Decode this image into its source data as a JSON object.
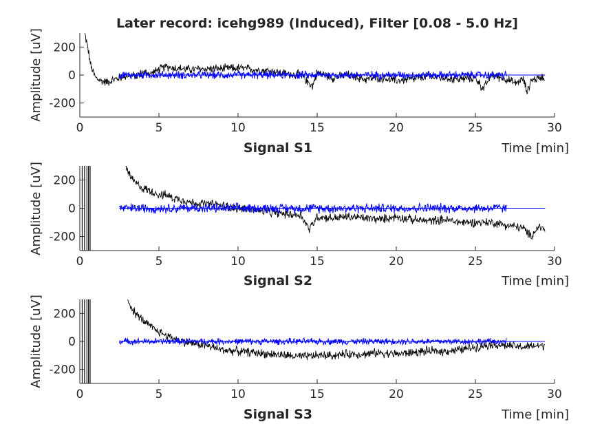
{
  "title": "Later record: icehg989 (Induced), Filter [0.08 - 5.0 Hz]",
  "colors": {
    "raw": "#000000",
    "filtered": "#0000ff",
    "axis": "#262626"
  },
  "chart_data": [
    {
      "type": "line",
      "title": "Signal S1",
      "xlabel": "Time [min]",
      "ylabel": "Amplitude [uV]",
      "xlim": [
        0,
        30
      ],
      "ylim": [
        -300,
        300
      ],
      "xticks": [
        0,
        5,
        10,
        15,
        20,
        25,
        30
      ],
      "yticks": [
        -200,
        0,
        200
      ],
      "series": [
        {
          "color": "#000000",
          "x": [
            0.3,
            0.5,
            0.7,
            1.0,
            1.3,
            1.7,
            2.0,
            2.5,
            3.0,
            3.5,
            4.0,
            4.5,
            5.0,
            5.5,
            6.0,
            7.0,
            8.0,
            9.0,
            10.0,
            11.0,
            12.0,
            13.0,
            14.0,
            14.7,
            15.0,
            15.5,
            16.0,
            17.0,
            18.0,
            19.0,
            20.0,
            21.0,
            22.0,
            23.0,
            24.0,
            25.0,
            25.5,
            26.0,
            27.0,
            27.5,
            28.0,
            28.3,
            28.5,
            29.0,
            29.4
          ],
          "y": [
            300,
            200,
            60,
            -20,
            -40,
            -50,
            -40,
            -20,
            0,
            -10,
            20,
            10,
            40,
            60,
            50,
            40,
            45,
            45,
            50,
            40,
            30,
            10,
            0,
            -80,
            20,
            0,
            -20,
            0,
            -30,
            -20,
            -40,
            -30,
            -10,
            -20,
            -30,
            -20,
            -100,
            0,
            -30,
            -60,
            -30,
            -120,
            -40,
            -20,
            -10
          ]
        },
        {
          "color": "#0000ff",
          "x": [
            2.5,
            5,
            10,
            15,
            20,
            25,
            27
          ],
          "y": [
            0,
            0,
            0,
            0,
            0,
            0,
            0
          ],
          "noise_band": 25
        }
      ]
    },
    {
      "type": "line",
      "title": "Signal S2",
      "xlabel": "Time [min]",
      "ylabel": "Amplitude [uV]",
      "xlim": [
        0,
        30
      ],
      "ylim": [
        -300,
        300
      ],
      "xticks": [
        0,
        5,
        10,
        15,
        20,
        25,
        30
      ],
      "yticks": [
        -200,
        0,
        200
      ],
      "series": [
        {
          "color": "#000000",
          "x": [
            2.9,
            3.2,
            3.5,
            4.0,
            4.5,
            5.0,
            5.5,
            6.0,
            6.5,
            7.0,
            8.0,
            9.0,
            10.0,
            11.0,
            12.0,
            13.0,
            14.0,
            14.5,
            15.0,
            16.0,
            17.0,
            18.0,
            19.0,
            20.0,
            21.0,
            22.0,
            23.0,
            24.0,
            25.0,
            26.0,
            27.0,
            28.0,
            28.5,
            29.0,
            29.4
          ],
          "y": [
            300,
            220,
            180,
            140,
            120,
            100,
            90,
            70,
            60,
            40,
            30,
            20,
            0,
            -10,
            -30,
            -40,
            -50,
            -150,
            -60,
            -70,
            -60,
            -70,
            -80,
            -60,
            -80,
            -90,
            -80,
            -100,
            -100,
            -100,
            -120,
            -140,
            -200,
            -130,
            -150
          ]
        },
        {
          "color": "#0000ff",
          "x": [
            2.5,
            5,
            10,
            15,
            20,
            25,
            27
          ],
          "y": [
            0,
            0,
            0,
            0,
            0,
            0,
            0
          ],
          "noise_band": 30
        }
      ]
    },
    {
      "type": "line",
      "title": "Signal S3",
      "xlabel": "Time [min]",
      "ylabel": "Amplitude [uV]",
      "xlim": [
        0,
        30
      ],
      "ylim": [
        -300,
        300
      ],
      "xticks": [
        0,
        5,
        10,
        15,
        20,
        25,
        30
      ],
      "yticks": [
        -200,
        0,
        200
      ],
      "series": [
        {
          "color": "#000000",
          "x": [
            3.0,
            3.5,
            4.0,
            4.5,
            5.0,
            5.5,
            6.0,
            6.5,
            7.0,
            8.0,
            9.0,
            10.0,
            11.0,
            12.0,
            13.0,
            14.0,
            15.0,
            16.0,
            17.0,
            18.0,
            19.0,
            20.0,
            21.0,
            22.0,
            23.0,
            24.0,
            25.0,
            26.0,
            27.0,
            28.0,
            29.0,
            29.4
          ],
          "y": [
            300,
            200,
            150,
            100,
            70,
            40,
            20,
            0,
            -10,
            -30,
            -60,
            -70,
            -80,
            -90,
            -100,
            -110,
            -100,
            -100,
            -90,
            -90,
            -80,
            -90,
            -80,
            -70,
            -70,
            -60,
            -40,
            -20,
            -30,
            -40,
            -30,
            -30
          ]
        },
        {
          "color": "#0000ff",
          "x": [
            2.5,
            5,
            10,
            15,
            20,
            25,
            27
          ],
          "y": [
            0,
            0,
            0,
            0,
            0,
            0,
            0
          ],
          "noise_band": 20
        }
      ]
    }
  ]
}
